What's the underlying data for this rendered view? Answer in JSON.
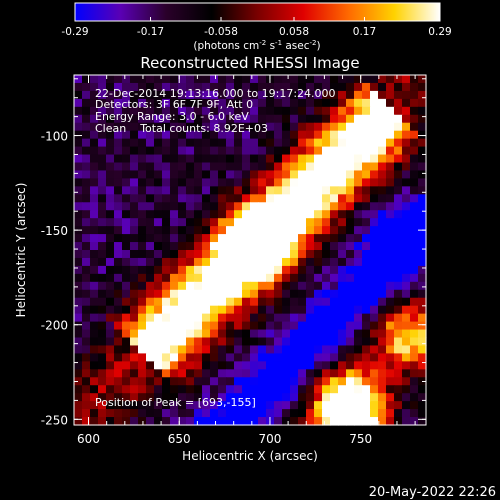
{
  "chart_data": {
    "type": "heatmap",
    "title": "Reconstructed RHESSI Image",
    "xlabel": "Heliocentric X (arcsec)",
    "ylabel": "Heliocentric Y (arcsec)",
    "xlim": [
      592,
      786
    ],
    "ylim": [
      -253,
      -68
    ],
    "xticks": [
      "600",
      "650",
      "700",
      "750"
    ],
    "xtick_values": [
      600,
      650,
      700,
      750
    ],
    "yticks": [
      "-100",
      "-150",
      "-200",
      "-250"
    ],
    "ytick_values": [
      -100,
      -150,
      -200,
      -250
    ],
    "colorbar": {
      "range": [
        -0.29,
        0.29
      ],
      "ticks": [
        "-0.29",
        "-0.17",
        "-0.058",
        "0.058",
        "0.17",
        "0.29"
      ],
      "tick_values": [
        -0.29,
        -0.17,
        -0.058,
        0.058,
        0.17,
        0.29
      ],
      "label": "(photons cm",
      "label_exp1": "-2",
      "label_mid": " s",
      "label_exp2": "-1",
      "label_mid2": " asec",
      "label_exp3": "-2",
      "label_end": ")",
      "colors": [
        "#0000ff",
        "#5a00b4",
        "#2a002a",
        "#000000",
        "#7a0000",
        "#e00000",
        "#ff6a00",
        "#ffd200",
        "#ffffff"
      ]
    },
    "annotations": {
      "time": "22-Dec-2014 19:13:16.000 to 19:17:24.000",
      "detectors": "Detectors: 3F 6F 7F 9F, Att 0",
      "energy": "Energy Range: 3.0 - 6.0 keV",
      "clean": "Clean    Total counts: 8.92E+03",
      "peak": "Position of Peak = [693,-155]"
    },
    "peak": [
      693,
      -155
    ],
    "date": "20-May-2022 22:26"
  }
}
